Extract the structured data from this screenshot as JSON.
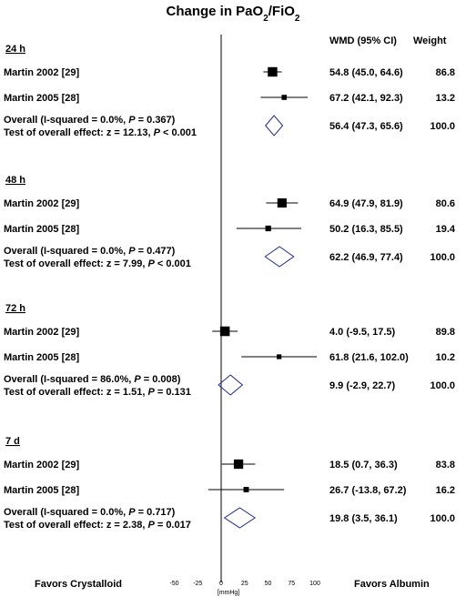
{
  "chart_data": {
    "type": "forest",
    "title_main": "Change in PaO",
    "title_sub1": "2",
    "title_mid": "/FiO",
    "title_sub2": "2",
    "col_wmd": "WMD (95% CI)",
    "col_weight": "Weight",
    "xlim": [
      -50,
      100
    ],
    "xticks": [
      -50,
      -25,
      0,
      25,
      50,
      75,
      100
    ],
    "xunit": "[mmHg]",
    "left_label": "Favors Crystalloid",
    "right_label": "Favors Albumin",
    "colors": {
      "marker": "#000000",
      "diamond": "#1f2d8a",
      "axis": "#000000"
    },
    "groups": [
      {
        "label": "24 h",
        "studies": [
          {
            "name": "Martin 2002 [29]",
            "est": 54.8,
            "lo": 45.0,
            "hi": 64.6,
            "ci": "54.8 (45.0, 64.6)",
            "weight": "86.8",
            "w": 86.8
          },
          {
            "name": "Martin 2005 [28]",
            "est": 67.2,
            "lo": 42.1,
            "hi": 92.3,
            "ci": "67.2 (42.1, 92.3)",
            "weight": "13.2",
            "w": 13.2
          }
        ],
        "overall": {
          "label_pre": "Overall (I-squared = 0.0%, ",
          "label_p": "P",
          "label_post": " = 0.367)",
          "est": 56.4,
          "lo": 47.3,
          "hi": 65.6,
          "ci": "56.4 (47.3, 65.6)",
          "weight": "100.0"
        },
        "test": {
          "pre": "Test of overall effect: z = 12.13, ",
          "p": "P",
          "post": " < 0.001"
        }
      },
      {
        "label": "48 h",
        "studies": [
          {
            "name": "Martin 2002 [29]",
            "est": 64.9,
            "lo": 47.9,
            "hi": 81.9,
            "ci": "64.9 (47.9, 81.9)",
            "weight": "80.6",
            "w": 80.6
          },
          {
            "name": "Martin 2005 [28]",
            "est": 50.2,
            "lo": 16.3,
            "hi": 85.5,
            "ci": "50.2 (16.3, 85.5)",
            "weight": "19.4",
            "w": 19.4
          }
        ],
        "overall": {
          "label_pre": "Overall (I-squared = 0.0%, ",
          "label_p": "P",
          "label_post": " = 0.477)",
          "est": 62.2,
          "lo": 46.9,
          "hi": 77.4,
          "ci": "62.2 (46.9, 77.4)",
          "weight": "100.0"
        },
        "test": {
          "pre": "Test of overall effect: z = 7.99, ",
          "p": "P",
          "post": " < 0.001"
        }
      },
      {
        "label": "72 h",
        "studies": [
          {
            "name": "Martin 2002 [29]",
            "est": 4.0,
            "lo": -9.5,
            "hi": 17.5,
            "ci": "4.0 (-9.5, 17.5)",
            "weight": "89.8",
            "w": 89.8
          },
          {
            "name": "Martin 2005 [28]",
            "est": 61.8,
            "lo": 21.6,
            "hi": 102.0,
            "ci": "61.8 (21.6, 102.0)",
            "weight": "10.2",
            "w": 10.2
          }
        ],
        "overall": {
          "label_pre": "Overall (I-squared = 86.0%, ",
          "label_p": "P",
          "label_post": " = 0.008)",
          "est": 9.9,
          "lo": -2.9,
          "hi": 22.7,
          "ci": "9.9 (-2.9, 22.7)",
          "weight": "100.0"
        },
        "test": {
          "pre": "Test of overall effect: z = 1.51, ",
          "p": "P",
          "post": " = 0.131"
        }
      },
      {
        "label": "7 d",
        "studies": [
          {
            "name": "Martin 2002 [29]",
            "est": 18.5,
            "lo": 0.7,
            "hi": 36.3,
            "ci": "18.5 (0.7, 36.3)",
            "weight": "83.8",
            "w": 83.8
          },
          {
            "name": "Martin 2005 [28]",
            "est": 26.7,
            "lo": -13.8,
            "hi": 67.2,
            "ci": "26.7 (-13.8, 67.2)",
            "weight": "16.2",
            "w": 16.2
          }
        ],
        "overall": {
          "label_pre": "Overall (I-squared = 0.0%, ",
          "label_p": "P",
          "label_post": " = 0.717)",
          "est": 19.8,
          "lo": 3.5,
          "hi": 36.1,
          "ci": "19.8 (3.5, 36.1)",
          "weight": "100.0"
        },
        "test": {
          "pre": "Test of overall effect: z = 2.38, ",
          "p": "P",
          "post": " = 0.017"
        }
      }
    ]
  }
}
